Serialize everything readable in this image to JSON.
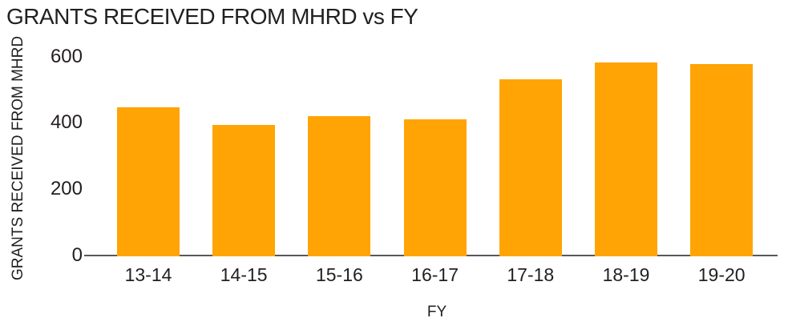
{
  "chart_data": {
    "type": "bar",
    "title": "GRANTS RECEIVED FROM MHRD vs FY",
    "xlabel": "FY",
    "ylabel": "GRANTS RECEIVED FROM MHRD",
    "categories": [
      "13-14",
      "14-15",
      "15-16",
      "16-17",
      "17-18",
      "18-19",
      "19-20"
    ],
    "values": [
      447,
      393,
      421,
      410,
      530,
      583,
      578
    ],
    "yticks": [
      0,
      200,
      400,
      600
    ],
    "ylim": [
      0,
      600
    ],
    "grid": false,
    "legend": "none",
    "colors": {
      "bar": "#ffa404",
      "axis": "#58595b",
      "text": "#231f20"
    }
  }
}
